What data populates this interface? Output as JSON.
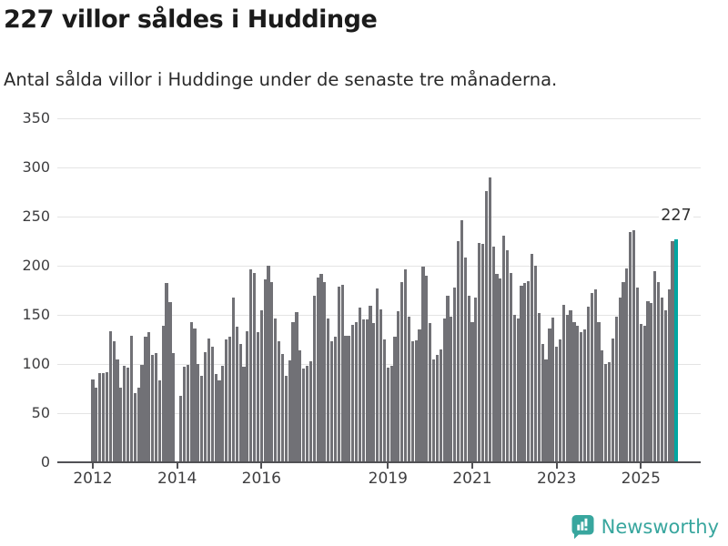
{
  "header": {
    "title": "227 villor såldes i Huddinge",
    "subtitle": "Antal sålda villor i Huddinge under de senaste tre månaderna."
  },
  "chart_data": {
    "type": "bar",
    "title": "227 villor såldes i Huddinge",
    "x_unit": "month",
    "x_start": "2012-01",
    "x_end": "2025-11",
    "values": [
      84,
      76,
      91,
      91,
      92,
      133,
      123,
      105,
      76,
      98,
      96,
      129,
      70,
      76,
      99,
      128,
      132,
      109,
      111,
      83,
      139,
      182,
      163,
      111,
      null,
      68,
      97,
      99,
      143,
      136,
      100,
      88,
      112,
      126,
      118,
      90,
      83,
      98,
      125,
      128,
      168,
      138,
      120,
      97,
      133,
      196,
      193,
      132,
      155,
      186,
      200,
      183,
      146,
      123,
      110,
      88,
      104,
      143,
      153,
      114,
      95,
      98,
      103,
      169,
      188,
      192,
      183,
      146,
      123,
      128,
      179,
      181,
      129,
      129,
      140,
      143,
      157,
      145,
      145,
      159,
      142,
      177,
      156,
      125,
      96,
      98,
      128,
      154,
      183,
      196,
      148,
      123,
      124,
      135,
      199,
      190,
      142,
      105,
      109,
      115,
      146,
      169,
      148,
      178,
      225,
      246,
      208,
      169,
      143,
      168,
      223,
      222,
      276,
      290,
      219,
      192,
      187,
      231,
      216,
      193,
      150,
      146,
      180,
      182,
      184,
      212,
      200,
      152,
      120,
      105,
      136,
      147,
      118,
      125,
      160,
      150,
      155,
      143,
      139,
      132,
      135,
      158,
      172,
      176,
      143,
      114,
      100,
      102,
      126,
      148,
      168,
      183,
      197,
      234,
      236,
      178,
      141,
      139,
      164,
      162,
      194,
      183,
      168,
      155,
      176,
      225,
      227
    ],
    "highlight": {
      "index": 166,
      "value": 227,
      "label": "227"
    },
    "ylim": [
      0,
      350
    ],
    "yticks": [
      0,
      50,
      100,
      150,
      200,
      250,
      300,
      350
    ],
    "xticks": [
      {
        "label": "2012",
        "month_index": 0
      },
      {
        "label": "2014",
        "month_index": 24
      },
      {
        "label": "2016",
        "month_index": 48
      },
      {
        "label": "2019",
        "month_index": 84
      },
      {
        "label": "2021",
        "month_index": 108
      },
      {
        "label": "2023",
        "month_index": 132
      },
      {
        "label": "2025",
        "month_index": 156
      }
    ],
    "grid": true,
    "legend": null,
    "colors": {
      "bar": "#717176",
      "highlight": "#00a5a1",
      "grid": "#e4e4e4",
      "axis": "#515155",
      "tick_label": "#3e3e40",
      "annotation": "#303030"
    }
  },
  "footer": {
    "brand": "Newsworthy",
    "brand_color": "#38a69e",
    "icon": "newsworthy-bar-chart-bubble"
  }
}
